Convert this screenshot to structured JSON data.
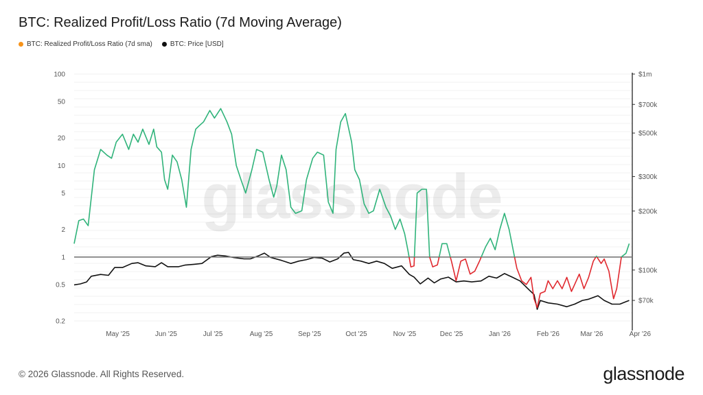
{
  "title": "BTC: Realized Profit/Loss Ratio (7d Moving Average)",
  "footer": "© 2026 Glassnode. All Rights Reserved.",
  "brand": "glassnode",
  "watermark": "glassnode",
  "colors": {
    "profit": "#2fb37a",
    "loss": "#e0282e",
    "price": "#111111",
    "legend_ratio": "#f7931a",
    "baseline": "#888888"
  },
  "chart_data": {
    "type": "line",
    "legend": [
      {
        "name": "BTC: Realized Profit/Loss Ratio (7d sma)",
        "color": "#f7931a"
      },
      {
        "name": "BTC: Price [USD]",
        "color": "#111111"
      }
    ],
    "x_ticks": [
      "May '25",
      "Jun '25",
      "Jul '25",
      "Aug '25",
      "Sep '25",
      "Oct '25",
      "Nov '25",
      "Dec '25",
      "Jan '26",
      "Feb '26",
      "Mar '26",
      "Apr '26"
    ],
    "y_left": {
      "scale": "log",
      "ticks": [
        "100",
        "50",
        "20",
        "10",
        "5",
        "2",
        "1",
        "0.5",
        "0.2"
      ],
      "range": [
        0.2,
        100
      ]
    },
    "y_right": {
      "scale": "log",
      "ticks": [
        "$1m",
        "$700k",
        "$500k",
        "$300k",
        "$200k",
        "$100k",
        "$70k"
      ],
      "range": [
        55000,
        1000000
      ]
    },
    "reference_line": 1,
    "series": [
      {
        "name": "BTC: Realized Profit/Loss Ratio (7d sma)",
        "axis": "left",
        "points": [
          [
            "2025-04-14",
            1.4
          ],
          [
            "2025-04-17",
            2.5
          ],
          [
            "2025-04-20",
            2.6
          ],
          [
            "2025-04-23",
            2.2
          ],
          [
            "2025-04-27",
            9
          ],
          [
            "2025-05-01",
            15
          ],
          [
            "2025-05-05",
            13
          ],
          [
            "2025-05-08",
            12
          ],
          [
            "2025-05-11",
            18
          ],
          [
            "2025-05-15",
            22
          ],
          [
            "2025-05-19",
            15
          ],
          [
            "2025-05-22",
            22
          ],
          [
            "2025-05-25",
            18
          ],
          [
            "2025-05-28",
            25
          ],
          [
            "2025-06-01",
            17
          ],
          [
            "2025-06-04",
            25
          ],
          [
            "2025-06-06",
            16
          ],
          [
            "2025-06-09",
            14
          ],
          [
            "2025-06-11",
            7
          ],
          [
            "2025-06-13",
            5.5
          ],
          [
            "2025-06-16",
            13
          ],
          [
            "2025-06-19",
            11
          ],
          [
            "2025-06-22",
            7
          ],
          [
            "2025-06-25",
            3.5
          ],
          [
            "2025-06-28",
            15
          ],
          [
            "2025-07-01",
            25
          ],
          [
            "2025-07-03",
            27
          ],
          [
            "2025-07-06",
            30
          ],
          [
            "2025-07-10",
            40
          ],
          [
            "2025-07-13",
            33
          ],
          [
            "2025-07-17",
            42
          ],
          [
            "2025-07-21",
            30
          ],
          [
            "2025-07-24",
            22
          ],
          [
            "2025-07-27",
            10
          ],
          [
            "2025-07-30",
            7
          ],
          [
            "2025-08-02",
            5
          ],
          [
            "2025-08-06",
            9
          ],
          [
            "2025-08-09",
            15
          ],
          [
            "2025-08-13",
            14
          ],
          [
            "2025-08-17",
            7
          ],
          [
            "2025-08-20",
            4.5
          ],
          [
            "2025-08-22",
            6
          ],
          [
            "2025-08-25",
            13
          ],
          [
            "2025-08-28",
            9
          ],
          [
            "2025-08-31",
            3.5
          ],
          [
            "2025-09-03",
            3
          ],
          [
            "2025-09-07",
            3.2
          ],
          [
            "2025-09-10",
            7
          ],
          [
            "2025-09-14",
            12
          ],
          [
            "2025-09-17",
            14
          ],
          [
            "2025-09-21",
            13
          ],
          [
            "2025-09-24",
            4
          ],
          [
            "2025-09-27",
            3
          ],
          [
            "2025-09-29",
            15
          ],
          [
            "2025-10-02",
            30
          ],
          [
            "2025-10-05",
            37
          ],
          [
            "2025-10-09",
            18
          ],
          [
            "2025-10-11",
            9
          ],
          [
            "2025-10-14",
            7
          ],
          [
            "2025-10-17",
            3.8
          ],
          [
            "2025-10-20",
            3
          ],
          [
            "2025-10-23",
            3.2
          ],
          [
            "2025-10-27",
            5.5
          ],
          [
            "2025-10-31",
            3.5
          ],
          [
            "2025-11-03",
            2.8
          ],
          [
            "2025-11-06",
            2
          ],
          [
            "2025-11-09",
            2.6
          ],
          [
            "2025-11-12",
            1.8
          ],
          [
            "2025-11-14",
            1.2
          ],
          [
            "2025-11-16",
            0.78
          ],
          [
            "2025-11-18",
            0.8
          ],
          [
            "2025-11-20",
            5
          ],
          [
            "2025-11-23",
            5.5
          ],
          [
            "2025-11-26",
            5.5
          ],
          [
            "2025-11-28",
            1.0
          ],
          [
            "2025-11-30",
            0.78
          ],
          [
            "2025-12-03",
            0.82
          ],
          [
            "2025-12-06",
            1.4
          ],
          [
            "2025-12-09",
            1.4
          ],
          [
            "2025-12-12",
            0.9
          ],
          [
            "2025-12-15",
            0.55
          ],
          [
            "2025-12-18",
            0.9
          ],
          [
            "2025-12-21",
            0.95
          ],
          [
            "2025-12-24",
            0.65
          ],
          [
            "2025-12-27",
            0.7
          ],
          [
            "2025-12-30",
            0.9
          ],
          [
            "2026-01-03",
            1.3
          ],
          [
            "2026-01-06",
            1.6
          ],
          [
            "2026-01-09",
            1.2
          ],
          [
            "2026-01-12",
            2
          ],
          [
            "2026-01-15",
            3
          ],
          [
            "2026-01-18",
            2
          ],
          [
            "2026-01-21",
            1.1
          ],
          [
            "2026-01-23",
            0.75
          ],
          [
            "2026-01-26",
            0.55
          ],
          [
            "2026-01-29",
            0.5
          ],
          [
            "2026-02-01",
            0.6
          ],
          [
            "2026-02-03",
            0.35
          ],
          [
            "2026-02-05",
            0.28
          ],
          [
            "2026-02-07",
            0.4
          ],
          [
            "2026-02-10",
            0.42
          ],
          [
            "2026-02-12",
            0.55
          ],
          [
            "2026-02-15",
            0.45
          ],
          [
            "2026-02-18",
            0.55
          ],
          [
            "2026-02-21",
            0.45
          ],
          [
            "2026-02-24",
            0.6
          ],
          [
            "2026-02-27",
            0.42
          ],
          [
            "2026-03-01",
            0.5
          ],
          [
            "2026-03-04",
            0.65
          ],
          [
            "2026-03-07",
            0.45
          ],
          [
            "2026-03-10",
            0.6
          ],
          [
            "2026-03-13",
            0.9
          ],
          [
            "2026-03-15",
            1.02
          ],
          [
            "2026-03-18",
            0.85
          ],
          [
            "2026-03-20",
            0.95
          ],
          [
            "2026-03-23",
            0.7
          ],
          [
            "2026-03-26",
            0.35
          ],
          [
            "2026-03-28",
            0.45
          ],
          [
            "2026-03-31",
            1.0
          ],
          [
            "2026-04-03",
            1.1
          ],
          [
            "2026-04-05",
            1.4
          ]
        ]
      },
      {
        "name": "BTC: Price [USD]",
        "axis": "right",
        "points": [
          [
            "2025-04-14",
            84000
          ],
          [
            "2025-04-18",
            85000
          ],
          [
            "2025-04-22",
            87000
          ],
          [
            "2025-04-25",
            93000
          ],
          [
            "2025-05-01",
            95000
          ],
          [
            "2025-05-06",
            94000
          ],
          [
            "2025-05-10",
            103000
          ],
          [
            "2025-05-15",
            103000
          ],
          [
            "2025-05-21",
            108000
          ],
          [
            "2025-05-25",
            109000
          ],
          [
            "2025-05-30",
            105000
          ],
          [
            "2025-06-05",
            104000
          ],
          [
            "2025-06-09",
            109000
          ],
          [
            "2025-06-13",
            104000
          ],
          [
            "2025-06-20",
            104000
          ],
          [
            "2025-06-24",
            106000
          ],
          [
            "2025-06-30",
            107000
          ],
          [
            "2025-07-05",
            108000
          ],
          [
            "2025-07-11",
            117000
          ],
          [
            "2025-07-15",
            119000
          ],
          [
            "2025-07-20",
            118000
          ],
          [
            "2025-07-25",
            116000
          ],
          [
            "2025-08-01",
            114000
          ],
          [
            "2025-08-05",
            114000
          ],
          [
            "2025-08-10",
            118000
          ],
          [
            "2025-08-14",
            122000
          ],
          [
            "2025-08-18",
            116000
          ],
          [
            "2025-08-25",
            112000
          ],
          [
            "2025-08-31",
            108000
          ],
          [
            "2025-09-05",
            111000
          ],
          [
            "2025-09-10",
            113000
          ],
          [
            "2025-09-15",
            116000
          ],
          [
            "2025-09-20",
            115000
          ],
          [
            "2025-09-25",
            110000
          ],
          [
            "2025-09-30",
            114000
          ],
          [
            "2025-10-04",
            122000
          ],
          [
            "2025-10-07",
            123000
          ],
          [
            "2025-10-10",
            113000
          ],
          [
            "2025-10-15",
            111000
          ],
          [
            "2025-10-20",
            108000
          ],
          [
            "2025-10-25",
            111000
          ],
          [
            "2025-10-30",
            108000
          ],
          [
            "2025-11-04",
            102000
          ],
          [
            "2025-11-10",
            105000
          ],
          [
            "2025-11-15",
            95000
          ],
          [
            "2025-11-18",
            92000
          ],
          [
            "2025-11-22",
            85000
          ],
          [
            "2025-11-27",
            91000
          ],
          [
            "2025-12-01",
            86000
          ],
          [
            "2025-12-05",
            90000
          ],
          [
            "2025-12-10",
            92000
          ],
          [
            "2025-12-15",
            87000
          ],
          [
            "2025-12-20",
            88000
          ],
          [
            "2025-12-25",
            87000
          ],
          [
            "2025-12-31",
            88000
          ],
          [
            "2026-01-05",
            93000
          ],
          [
            "2026-01-10",
            91000
          ],
          [
            "2026-01-15",
            96000
          ],
          [
            "2026-01-20",
            92000
          ],
          [
            "2026-01-25",
            88000
          ],
          [
            "2026-01-31",
            79000
          ],
          [
            "2026-02-03",
            75000
          ],
          [
            "2026-02-05",
            63000
          ],
          [
            "2026-02-07",
            70000
          ],
          [
            "2026-02-12",
            68000
          ],
          [
            "2026-02-18",
            67000
          ],
          [
            "2026-02-24",
            65000
          ],
          [
            "2026-03-01",
            67000
          ],
          [
            "2026-03-06",
            70000
          ],
          [
            "2026-03-10",
            71000
          ],
          [
            "2026-03-16",
            74000
          ],
          [
            "2026-03-20",
            70000
          ],
          [
            "2026-03-25",
            67000
          ],
          [
            "2026-03-30",
            67000
          ],
          [
            "2026-04-03",
            69000
          ],
          [
            "2026-04-05",
            70000
          ]
        ]
      }
    ]
  }
}
